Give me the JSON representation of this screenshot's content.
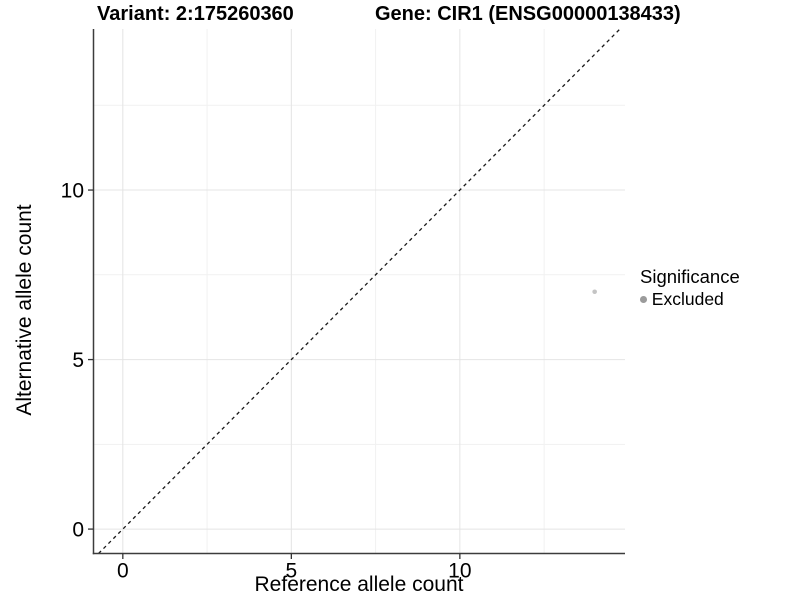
{
  "chart_data": {
    "type": "scatter",
    "title_left": "Variant: 2:175260360",
    "title_right": "Gene: CIR1 (ENSG00000138433)",
    "xlabel": "Reference allele count",
    "ylabel": "Alternative allele count",
    "xlim": [
      -0.87,
      14.9
    ],
    "ylim": [
      -0.72,
      14.75
    ],
    "x_major_ticks": [
      0,
      5,
      10
    ],
    "y_major_ticks": [
      0,
      5,
      10
    ],
    "x_minor_gridlines": [
      2.5,
      7.5,
      12.5
    ],
    "y_minor_gridlines": [
      2.5,
      7.5,
      12.5
    ],
    "grid": true,
    "identity_line": {
      "style": "dashed",
      "slope": 1,
      "intercept": 0,
      "color": "#1a1a1a"
    },
    "series": [
      {
        "name": "Excluded",
        "color": "#c4c4c4",
        "point_radius": 2.3,
        "points": [
          {
            "x": 14,
            "y": 7
          }
        ]
      }
    ],
    "legend": {
      "title": "Significance",
      "position": "right",
      "items": [
        {
          "label": "Excluded",
          "color": "#9b9b9b",
          "key_radius": 3.4
        }
      ]
    },
    "colors": {
      "background": "#ffffff",
      "grid_major": "#e4e4e4",
      "grid_minor": "#f1f1f1",
      "axis_line": "#3c3c3c",
      "tick_mark": "#333333",
      "text": "#000000"
    }
  }
}
